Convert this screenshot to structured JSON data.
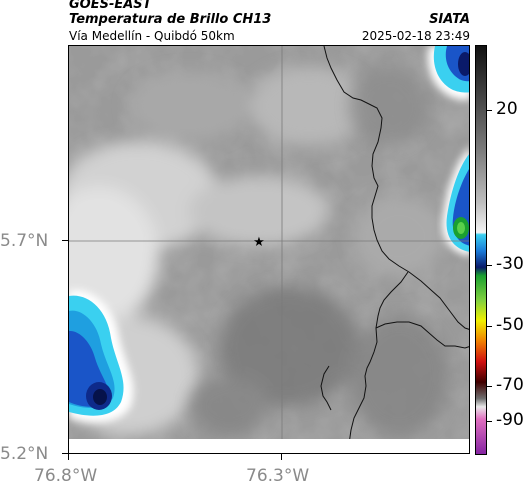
{
  "header": {
    "satellite": "GOES-EAST",
    "product": "Temperatura de Brillo CH13",
    "region": "Vía Medellín - Quibdó 50km",
    "organization": "SIATA",
    "datetime": "2025-02-18 23:49"
  },
  "axes": {
    "lat_labels": [
      "5.7°N",
      "5.2°N"
    ],
    "lon_labels": [
      "76.8°W",
      "76.3°W"
    ]
  },
  "colorbar": {
    "labels": [
      "20",
      "-30",
      "-50",
      "-70",
      "-90"
    ],
    "colors": {
      "black": "#111111",
      "gray_dark": "#5a5a5a",
      "gray_light": "#d8d8d8",
      "white": "#ffffff",
      "cyan": "#3ad0f0",
      "blue": "#1a55c8",
      "navy": "#0a1a6a",
      "green": "#1aa030",
      "yellow": "#f0f000",
      "orange": "#f08000",
      "red": "#d01010",
      "dark_red": "#400000",
      "pink": "#e070c0",
      "purple": "#8020a0"
    }
  },
  "marker": {
    "icon": "star-icon",
    "color": "#000000"
  }
}
